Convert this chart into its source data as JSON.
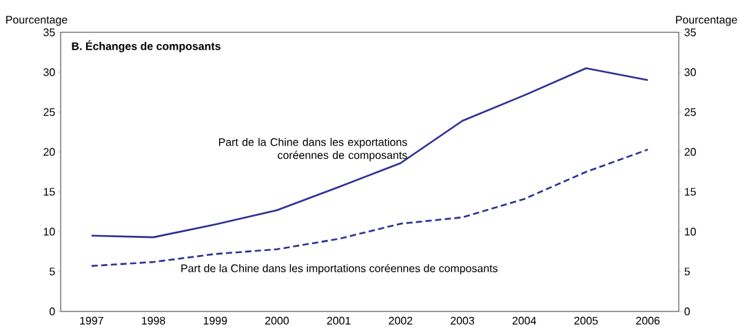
{
  "chart_data": {
    "type": "line",
    "title": "B. Échanges de composants",
    "ylabel": "Pourcentage",
    "y2label": "Pourcentage",
    "categories": [
      "1997",
      "1998",
      "1999",
      "2000",
      "2001",
      "2002",
      "2003",
      "2004",
      "2005",
      "2006"
    ],
    "series": [
      {
        "name": "Part de la Chine dans les exportations coréennes de composants",
        "color": "#2e3192",
        "line_style": "solid",
        "values": [
          9.5,
          9.3,
          10.9,
          12.7,
          15.6,
          18.6,
          23.9,
          27.1,
          30.5,
          29.0
        ]
      },
      {
        "name": "Part de la Chine dans les importations coréennes de composants",
        "color": "#2e3192",
        "line_style": "dashed",
        "values": [
          5.7,
          6.2,
          7.2,
          7.8,
          9.1,
          11.0,
          11.8,
          14.1,
          17.5,
          20.3
        ]
      }
    ],
    "ylim": [
      0,
      35
    ],
    "yticks": [
      0,
      5,
      10,
      15,
      20,
      25,
      30,
      35
    ],
    "y2lim": [
      0,
      35
    ],
    "y2ticks": [
      0,
      5,
      10,
      15,
      20,
      25,
      30,
      35
    ],
    "grid": false,
    "marker": "none"
  }
}
